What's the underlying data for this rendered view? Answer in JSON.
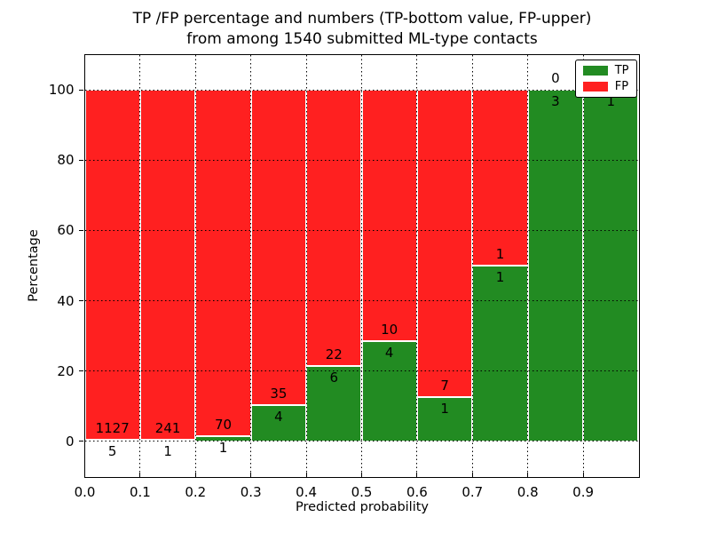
{
  "figure": {
    "title_line1": "TP /FP percentage and numbers (TP-bottom value, FP-upper)",
    "title_line2": "from among 1540 submitted ML-type contacts"
  },
  "axes": {
    "xlabel": "Predicted probability",
    "ylabel": "Percentage",
    "x_tick_labels": [
      "0.0",
      "0.1",
      "0.2",
      "0.3",
      "0.4",
      "0.5",
      "0.6",
      "0.7",
      "0.8",
      "0.9"
    ],
    "y_tick_labels": [
      "0",
      "20",
      "40",
      "60",
      "80",
      "100"
    ],
    "y_tick_values": [
      0,
      20,
      40,
      60,
      80,
      100
    ]
  },
  "legend": {
    "position": "upper right",
    "items": [
      {
        "label": "TP",
        "color": "#228b22"
      },
      {
        "label": "FP",
        "color": "#ff2020"
      }
    ]
  },
  "colors": {
    "tp": "#228b22",
    "fp": "#ff2020",
    "grid": "#000000",
    "bar_edge": "#ffffff",
    "background": "#ffffff"
  },
  "chart_data": {
    "type": "bar",
    "stacked": true,
    "normalized": "each bar scaled to 100%, TP on bottom, FP on top",
    "title": "TP /FP percentage and numbers (TP-bottom value, FP-upper) from among 1540 submitted ML-type contacts",
    "xlabel": "Predicted probability",
    "ylabel": "Percentage",
    "x_bins": [
      "0.0-0.1",
      "0.1-0.2",
      "0.2-0.3",
      "0.3-0.4",
      "0.4-0.5",
      "0.5-0.6",
      "0.6-0.7",
      "0.7-0.8",
      "0.8-0.9",
      "0.9-1.0"
    ],
    "bin_width": 0.1,
    "series": [
      {
        "name": "TP",
        "values": [
          5,
          1,
          1,
          4,
          6,
          4,
          1,
          1,
          3,
          1
        ]
      },
      {
        "name": "FP",
        "values": [
          1127,
          241,
          70,
          35,
          22,
          10,
          7,
          1,
          0,
          0
        ]
      }
    ],
    "tp_percent": [
      0.44,
      0.41,
      1.41,
      10.26,
      21.43,
      28.57,
      12.5,
      50.0,
      100.0,
      100.0
    ],
    "bar_value_labels": {
      "fp": [
        "1127",
        "241",
        "70",
        "35",
        "22",
        "10",
        "7",
        "1",
        "0",
        null
      ],
      "tp": [
        "5",
        "1",
        "1",
        "4",
        "6",
        "4",
        "1",
        "1",
        "3",
        "1"
      ]
    },
    "total_contacts": 1540,
    "xlim": [
      0.0,
      1.0
    ],
    "ylim": [
      -10,
      110
    ],
    "grid": true,
    "grid_style": "dotted black horizontal; dotted vertical at bin edges",
    "legend_position": "upper right"
  }
}
